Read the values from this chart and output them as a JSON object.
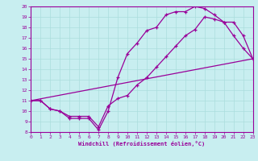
{
  "xlabel": "Windchill (Refroidissement éolien,°C)",
  "xlim": [
    0,
    23
  ],
  "ylim": [
    8,
    20
  ],
  "xticks": [
    0,
    1,
    2,
    3,
    4,
    5,
    6,
    7,
    8,
    9,
    10,
    11,
    12,
    13,
    14,
    15,
    16,
    17,
    18,
    19,
    20,
    21,
    22,
    23
  ],
  "yticks": [
    8,
    9,
    10,
    11,
    12,
    13,
    14,
    15,
    16,
    17,
    18,
    19,
    20
  ],
  "bg_color": "#c8eef0",
  "line_color": "#990099",
  "grid_color": "#aadddd",
  "line1_x": [
    0,
    1,
    2,
    3,
    4,
    5,
    6,
    7,
    8,
    9,
    10,
    11,
    12,
    13,
    14,
    15,
    16,
    17,
    18,
    19,
    20,
    21,
    22,
    23
  ],
  "line1_y": [
    11,
    11,
    10.2,
    10,
    9.3,
    9.3,
    9.3,
    8.2,
    10,
    13.2,
    15.5,
    16.5,
    17.7,
    18.0,
    19.2,
    19.5,
    19.5,
    20,
    19.8,
    19.2,
    18.5,
    17.2,
    16.0,
    15.0
  ],
  "line2_x": [
    0,
    1,
    2,
    3,
    4,
    5,
    6,
    7,
    8,
    9,
    10,
    11,
    12,
    13,
    14,
    15,
    16,
    17,
    18,
    19,
    20,
    21,
    22,
    23
  ],
  "line2_y": [
    11,
    11,
    10.2,
    10,
    9.5,
    9.5,
    9.5,
    8.5,
    10.5,
    11.2,
    11.5,
    12.5,
    13.2,
    14.2,
    15.2,
    16.2,
    17.2,
    17.8,
    19.0,
    18.8,
    18.5,
    18.5,
    17.2,
    15.0
  ],
  "line3_x": [
    0,
    23
  ],
  "line3_y": [
    11,
    15
  ]
}
